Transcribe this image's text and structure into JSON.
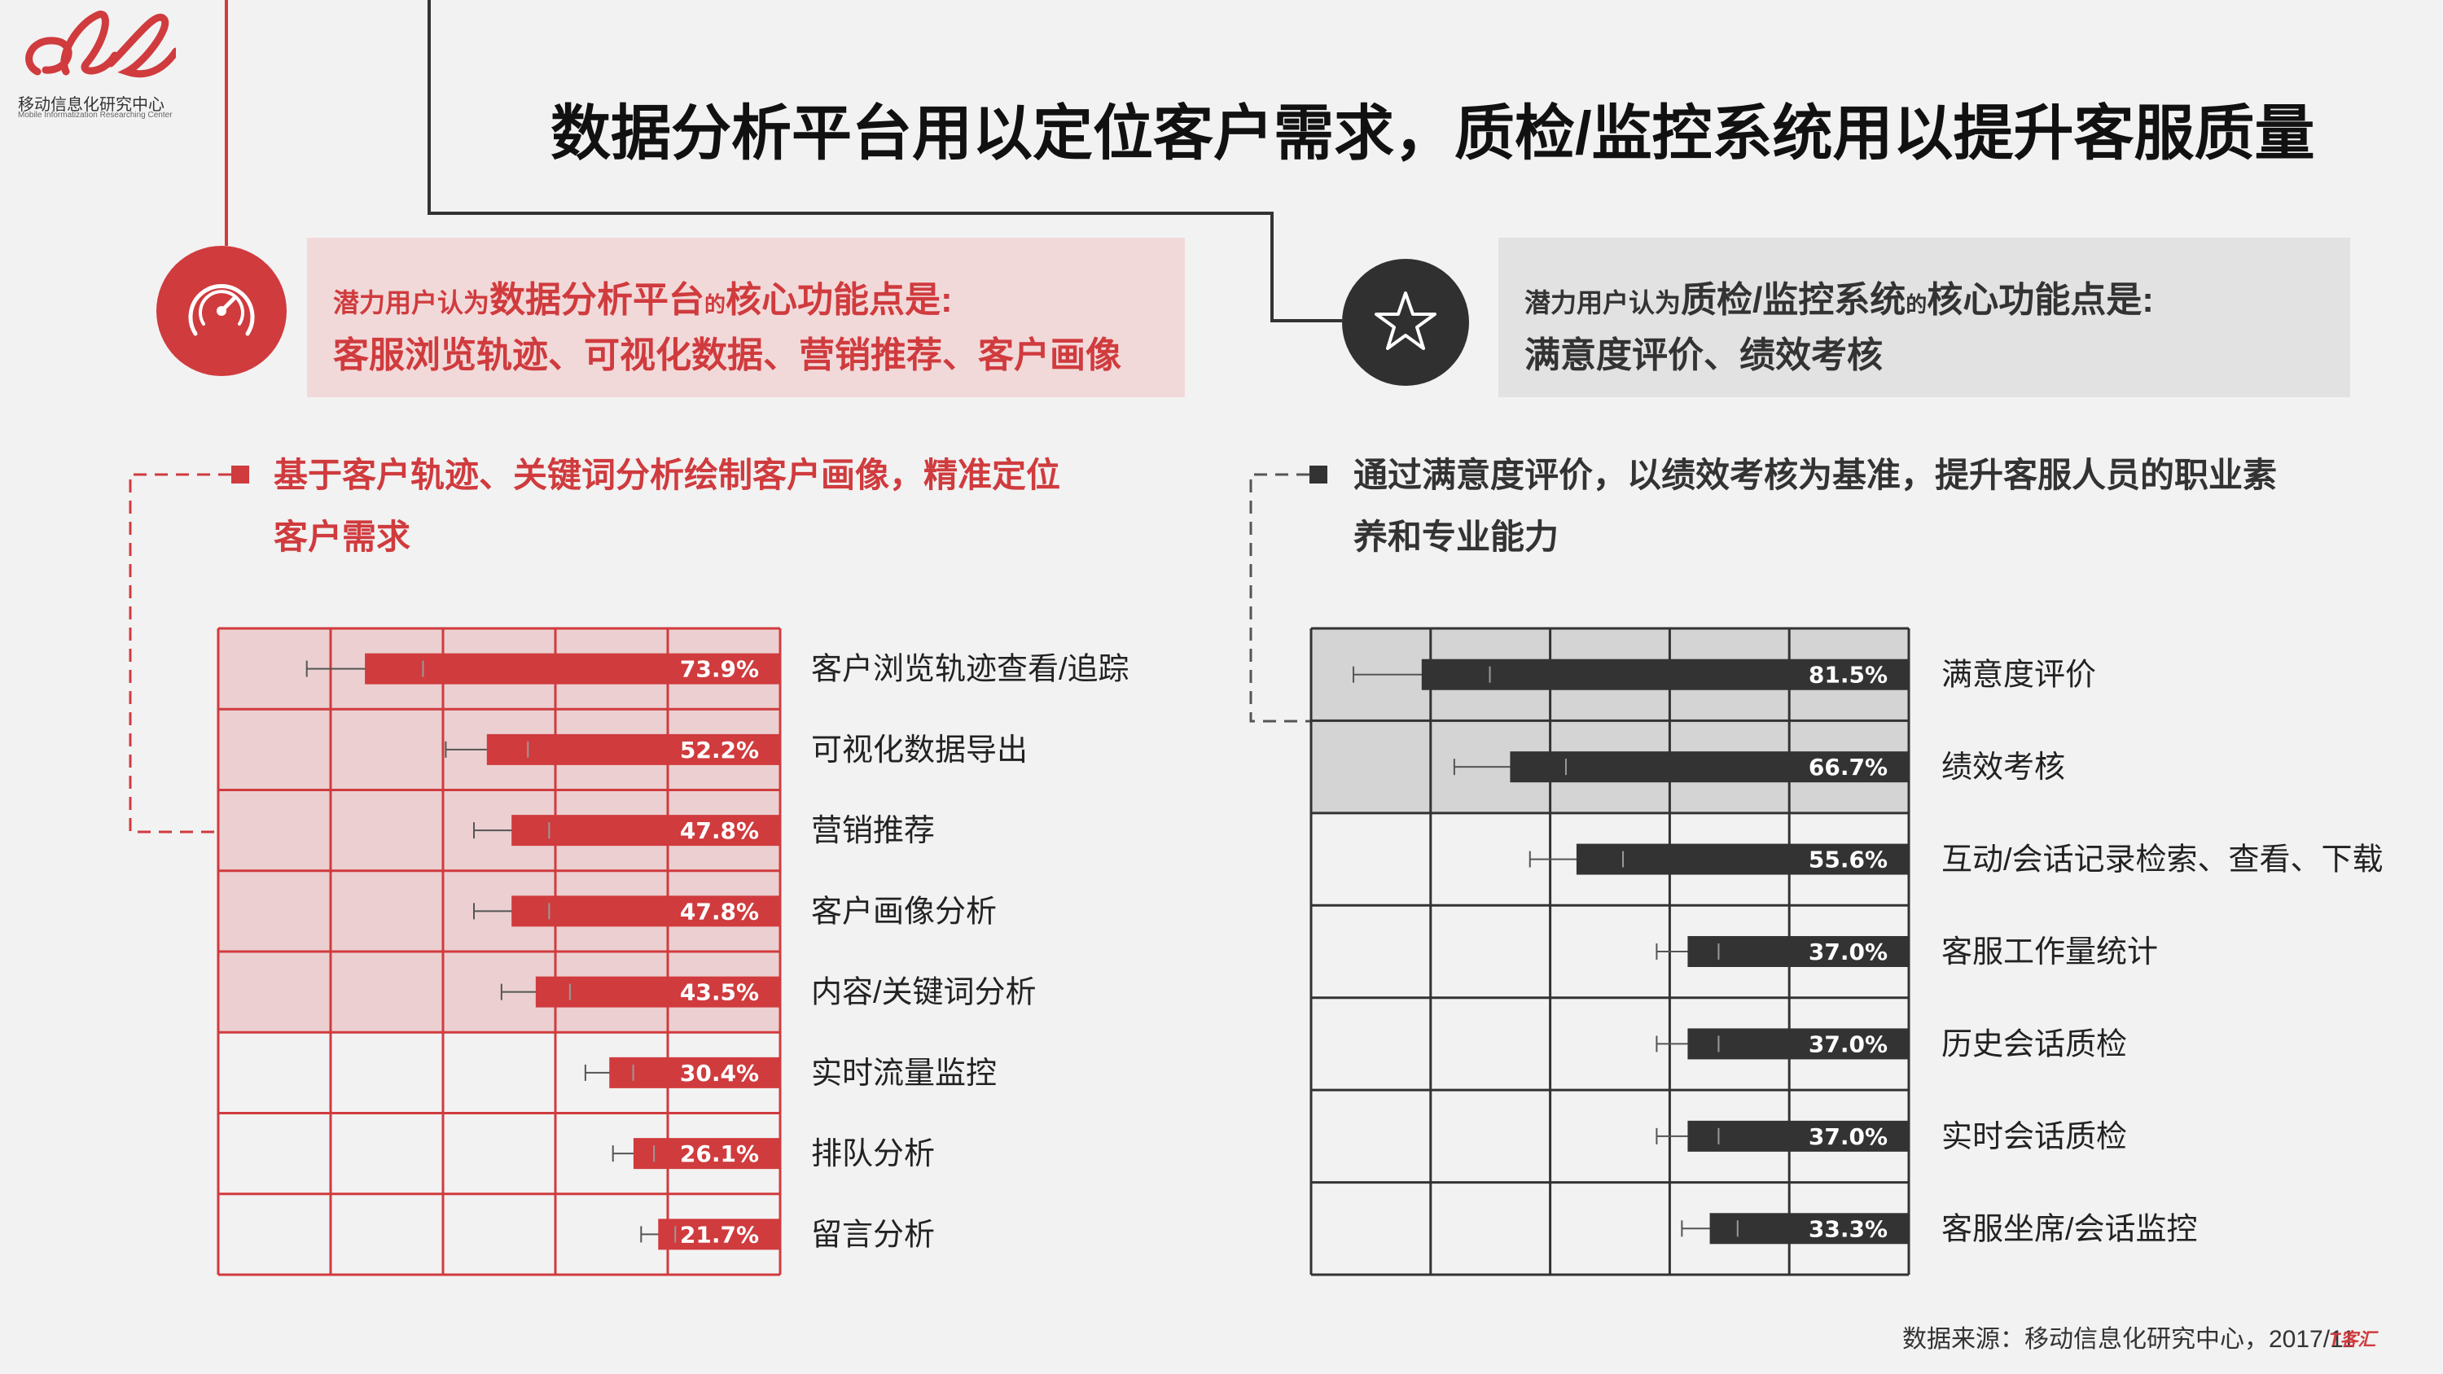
{
  "logo": {
    "name_cn": "移动信息化研究中心",
    "name_en": "Mobile Informatization Researching Center"
  },
  "title": "数据分析平台用以定位客户需求，质检/监控系统用以提升客服质量",
  "left_panel": {
    "icon": "speedometer-icon",
    "line1_pre": "潜力用户认为",
    "line1_em": "数据分析平台",
    "line1_mid": "的",
    "line1_post": "核心功能点是:",
    "line2": "客服浏览轨迹、可视化数据、营销推荐、客户画像",
    "note": "基于客户轨迹、关键词分析绘制客户画像，精准定位客户需求"
  },
  "right_panel": {
    "icon": "star-icon",
    "line1_pre": "潜力用户认为",
    "line1_em": "质检/监控系统",
    "line1_mid": "的",
    "line1_post": "核心功能点是:",
    "line2": "满意度评价、绩效考核",
    "note": "通过满意度评价，以绩效考核为基准，提升客服人员的职业素养和专业能力"
  },
  "source": "数据来源：移动信息化研究中心，2017/11",
  "corner_logo": "T客汇",
  "colors": {
    "red": "#d03b3e",
    "dark": "#333333",
    "pink_band": "#ecd0d1",
    "gray_band": "#d4d4d4",
    "bg": "#f2f2f2"
  },
  "chart_data": [
    {
      "type": "bar",
      "orientation": "horizontal",
      "categories": [
        "客户浏览轨迹查看/追踪",
        "可视化数据导出",
        "营销推荐",
        "客户画像分析",
        "内容/关键词分析",
        "实时流量监控",
        "排队分析",
        "留言分析"
      ],
      "values": [
        73.9,
        52.2,
        47.8,
        47.8,
        43.5,
        30.4,
        26.1,
        21.7
      ],
      "labels": [
        "73.9%",
        "52.2%",
        "47.8%",
        "47.8%",
        "43.5%",
        "30.4%",
        "26.1%",
        "21.7%"
      ],
      "xlim": [
        0,
        100
      ],
      "highlighted_rows": 5,
      "error_bars": true,
      "color": "#d03b3e"
    },
    {
      "type": "bar",
      "orientation": "horizontal",
      "categories": [
        "满意度评价",
        "绩效考核",
        "互动/会话记录检索、查看、下载",
        "客服工作量统计",
        "历史会话质检",
        "实时会话质检",
        "客服坐席/会话监控"
      ],
      "values": [
        81.5,
        66.7,
        55.6,
        37.0,
        37.0,
        37.0,
        33.3
      ],
      "labels": [
        "81.5%",
        "66.7%",
        "55.6%",
        "37.0%",
        "37.0%",
        "37.0%",
        "33.3%"
      ],
      "xlim": [
        0,
        100
      ],
      "highlighted_rows": 2,
      "error_bars": true,
      "color": "#333333"
    }
  ]
}
